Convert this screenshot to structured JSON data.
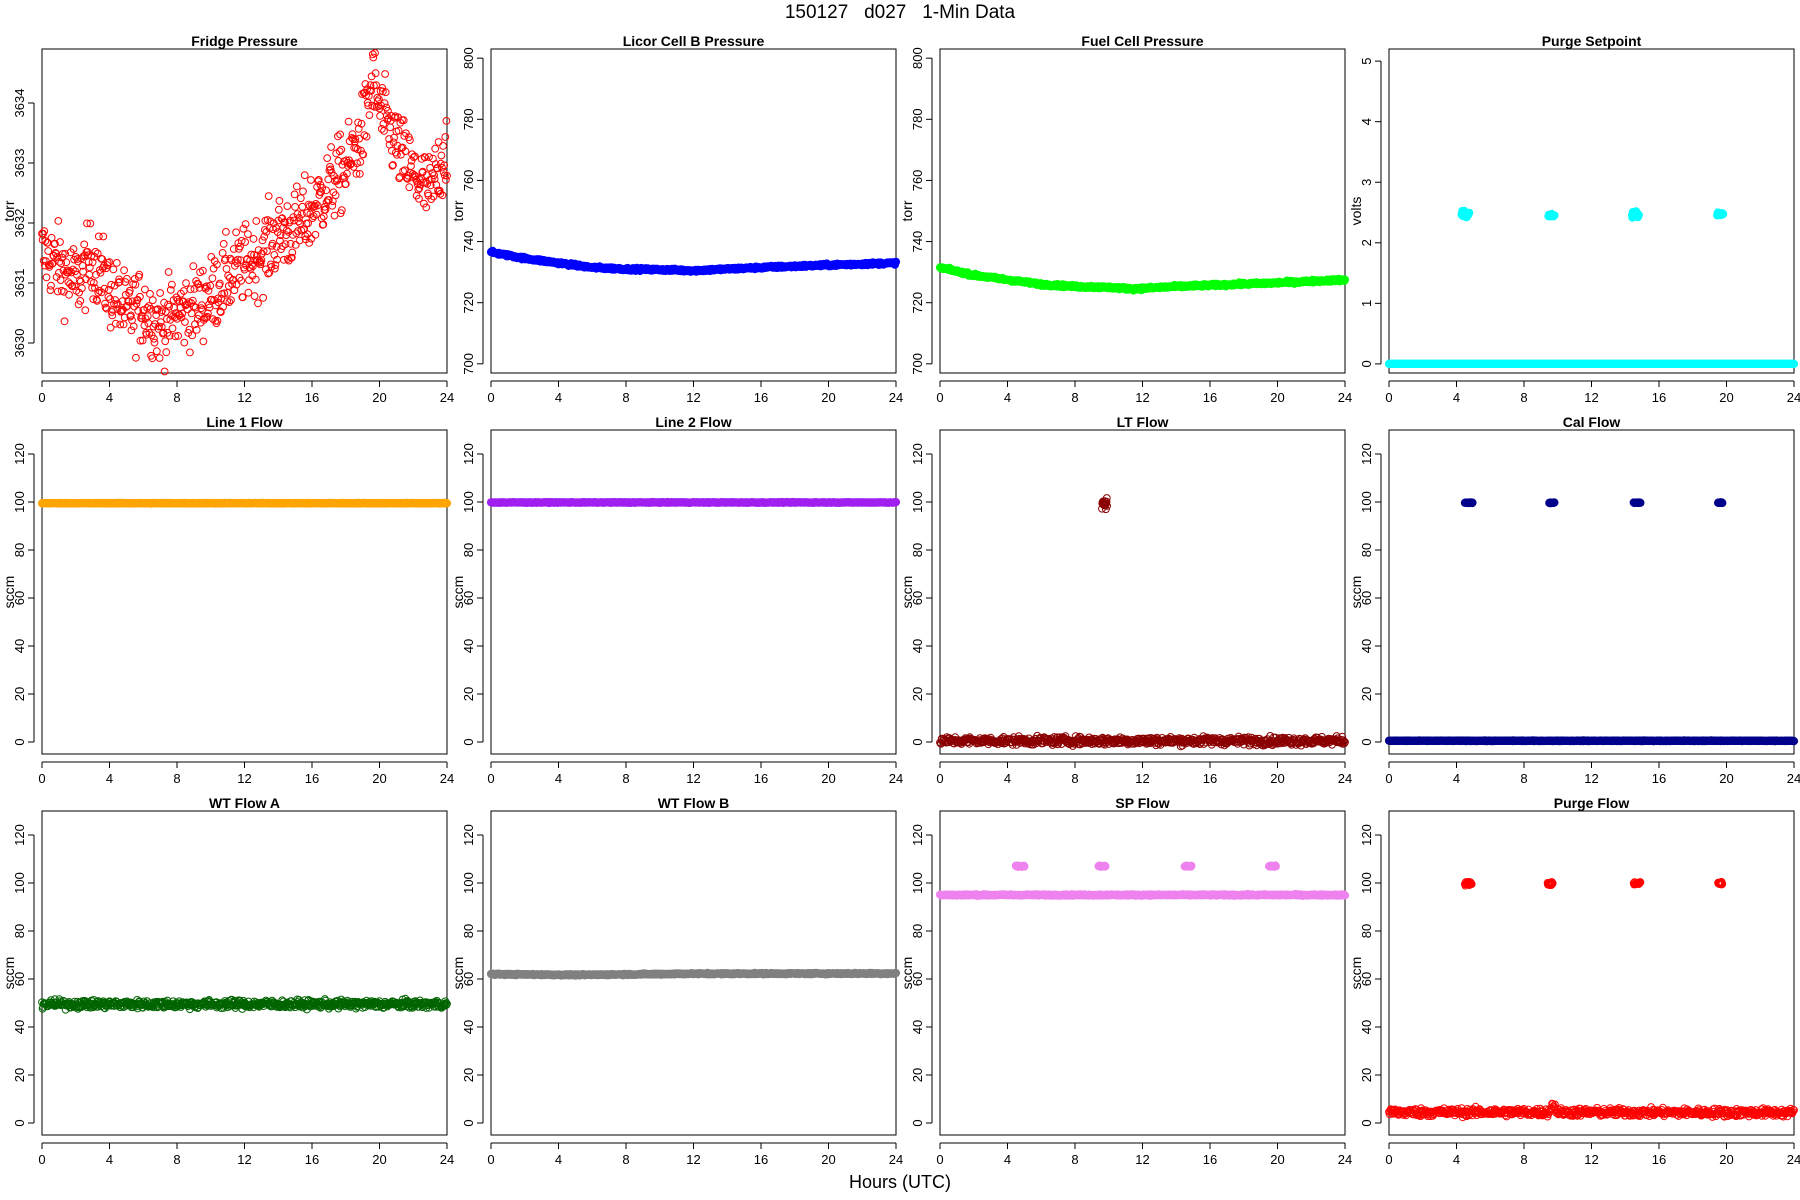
{
  "figure": {
    "title": "150127   d027   1-Min Data",
    "xlabel": "Hours (UTC)"
  },
  "chart_data": [
    {
      "type": "scatter",
      "title": "Fridge Pressure",
      "ylabel": "torr",
      "color": "#ff0000",
      "marker": "open-circle",
      "xlim": [
        0,
        24
      ],
      "ylim": [
        3629.5,
        3634.9
      ],
      "xticks": [
        0,
        4,
        8,
        12,
        16,
        20,
        24
      ],
      "yticks": [
        3630,
        3631,
        3632,
        3633,
        3634
      ],
      "trend": [
        [
          0,
          3631.5
        ],
        [
          1,
          3631.3
        ],
        [
          2,
          3631.0
        ],
        [
          3,
          3631.4
        ],
        [
          4,
          3630.9
        ],
        [
          5,
          3630.5
        ],
        [
          6,
          3630.6
        ],
        [
          7,
          3630.3
        ],
        [
          8,
          3630.5
        ],
        [
          9,
          3630.6
        ],
        [
          10,
          3630.8
        ],
        [
          11,
          3631.1
        ],
        [
          12,
          3631.3
        ],
        [
          13,
          3631.5
        ],
        [
          14,
          3631.8
        ],
        [
          15,
          3631.9
        ],
        [
          16,
          3632.2
        ],
        [
          17,
          3632.6
        ],
        [
          18,
          3632.9
        ],
        [
          19,
          3633.5
        ],
        [
          19.6,
          3634.4
        ],
        [
          20,
          3633.9
        ],
        [
          21,
          3633.3
        ],
        [
          22,
          3632.8
        ],
        [
          23,
          3632.5
        ],
        [
          24,
          3633.3
        ]
      ],
      "noise": 0.45
    },
    {
      "type": "scatter",
      "title": "Licor Cell B Pressure",
      "ylabel": "torr",
      "color": "#0000ff",
      "marker": "filled",
      "xlim": [
        0,
        24
      ],
      "ylim": [
        697,
        803
      ],
      "xticks": [
        0,
        4,
        8,
        12,
        16,
        20,
        24
      ],
      "yticks": [
        700,
        720,
        740,
        760,
        780,
        800
      ],
      "trend": [
        [
          0,
          736.5
        ],
        [
          2,
          734.5
        ],
        [
          4,
          733
        ],
        [
          6,
          731.5
        ],
        [
          8,
          731
        ],
        [
          10,
          730.8
        ],
        [
          12,
          730.5
        ],
        [
          14,
          731
        ],
        [
          16,
          731.5
        ],
        [
          20,
          732.3
        ],
        [
          24,
          733
        ]
      ],
      "noise": 0.3
    },
    {
      "type": "scatter",
      "title": "Fuel Cell Pressure",
      "ylabel": "torr",
      "color": "#00ff00",
      "marker": "filled",
      "xlim": [
        0,
        24
      ],
      "ylim": [
        697,
        803
      ],
      "xticks": [
        0,
        4,
        8,
        12,
        16,
        20,
        24
      ],
      "yticks": [
        700,
        720,
        740,
        760,
        780,
        800
      ],
      "trend": [
        [
          0,
          731.5
        ],
        [
          2,
          729
        ],
        [
          4,
          727.5
        ],
        [
          6,
          726
        ],
        [
          8,
          725.3
        ],
        [
          10,
          725
        ],
        [
          11.5,
          724.5
        ],
        [
          14,
          725.3
        ],
        [
          16,
          725.7
        ],
        [
          20,
          726.5
        ],
        [
          24,
          727.5
        ]
      ],
      "noise": 0.3
    },
    {
      "type": "scatter",
      "title": "Purge Setpoint",
      "ylabel": "volts",
      "color": "#00ffff",
      "marker": "filled",
      "xlim": [
        0,
        24
      ],
      "ylim": [
        -0.15,
        5.2
      ],
      "xticks": [
        0,
        4,
        8,
        12,
        16,
        20,
        24
      ],
      "yticks": [
        0,
        1,
        2,
        3,
        4,
        5
      ],
      "trend": [
        [
          0,
          0
        ],
        [
          24,
          0
        ]
      ],
      "noise": 0,
      "clusters": [
        {
          "x": [
            4.3,
            4.75
          ],
          "y": 2.47,
          "spread": 0.05
        },
        {
          "x": [
            9.45,
            9.8
          ],
          "y": 2.45,
          "spread": 0.02
        },
        {
          "x": [
            14.4,
            14.8
          ],
          "y": 2.47,
          "spread": 0.05
        },
        {
          "x": [
            19.45,
            19.8
          ],
          "y": 2.47,
          "spread": 0.02
        }
      ]
    },
    {
      "type": "scatter",
      "title": "Line 1 Flow",
      "ylabel": "sccm",
      "color": "#ffa500",
      "marker": "filled",
      "xlim": [
        0,
        24
      ],
      "ylim": [
        -5,
        130
      ],
      "xticks": [
        0,
        4,
        8,
        12,
        16,
        20,
        24
      ],
      "yticks": [
        0,
        20,
        40,
        60,
        80,
        100,
        120
      ],
      "trend": [
        [
          0,
          99.5
        ],
        [
          24,
          99.5
        ]
      ],
      "noise": 0.1
    },
    {
      "type": "scatter",
      "title": "Line 2 Flow",
      "ylabel": "sccm",
      "color": "#a020f0",
      "marker": "filled",
      "xlim": [
        0,
        24
      ],
      "ylim": [
        -5,
        130
      ],
      "xticks": [
        0,
        4,
        8,
        12,
        16,
        20,
        24
      ],
      "yticks": [
        0,
        20,
        40,
        60,
        80,
        100,
        120
      ],
      "trend": [
        [
          0,
          99.8
        ],
        [
          24,
          99.8
        ]
      ],
      "noise": 0.1
    },
    {
      "type": "scatter",
      "title": "LT Flow",
      "ylabel": "sccm",
      "color": "#8b0000",
      "marker": "open-circle",
      "xlim": [
        0,
        24
      ],
      "ylim": [
        -5,
        130
      ],
      "xticks": [
        0,
        4,
        8,
        12,
        16,
        20,
        24
      ],
      "yticks": [
        0,
        20,
        40,
        60,
        80,
        100,
        120
      ],
      "trend": [
        [
          0,
          0.5
        ],
        [
          24,
          0.5
        ]
      ],
      "noise": 1.2,
      "clusters": [
        {
          "x": [
            9.6,
            9.9
          ],
          "y": 99.5,
          "spread": 1.5
        }
      ]
    },
    {
      "type": "scatter",
      "title": "Cal Flow",
      "ylabel": "sccm",
      "color": "#00008b",
      "marker": "filled",
      "xlim": [
        0,
        24
      ],
      "ylim": [
        -5,
        130
      ],
      "xticks": [
        0,
        4,
        8,
        12,
        16,
        20,
        24
      ],
      "yticks": [
        0,
        20,
        40,
        60,
        80,
        100,
        120
      ],
      "trend": [
        [
          0,
          0.5
        ],
        [
          24,
          0.5
        ]
      ],
      "noise": 0.1,
      "clusters": [
        {
          "x": [
            4.5,
            4.95
          ],
          "y": 99.7,
          "spread": 0.1
        },
        {
          "x": [
            9.5,
            9.8
          ],
          "y": 99.7,
          "spread": 0.1
        },
        {
          "x": [
            14.5,
            14.9
          ],
          "y": 99.7,
          "spread": 0.1
        },
        {
          "x": [
            19.5,
            19.75
          ],
          "y": 99.7,
          "spread": 0.1
        }
      ]
    },
    {
      "type": "scatter",
      "title": "WT Flow A",
      "ylabel": "sccm",
      "color": "#006400",
      "marker": "open-circle",
      "xlim": [
        0,
        24
      ],
      "ylim": [
        -5,
        130
      ],
      "xticks": [
        0,
        4,
        8,
        12,
        16,
        20,
        24
      ],
      "yticks": [
        0,
        20,
        40,
        60,
        80,
        100,
        120
      ],
      "trend": [
        [
          0,
          49.5
        ],
        [
          24,
          49.5
        ]
      ],
      "noise": 1.2
    },
    {
      "type": "scatter",
      "title": "WT Flow B",
      "ylabel": "sccm",
      "color": "#808080",
      "marker": "filled",
      "xlim": [
        0,
        24
      ],
      "ylim": [
        -5,
        130
      ],
      "xticks": [
        0,
        4,
        8,
        12,
        16,
        20,
        24
      ],
      "yticks": [
        0,
        20,
        40,
        60,
        80,
        100,
        120
      ],
      "trend": [
        [
          0,
          62
        ],
        [
          5,
          61.7
        ],
        [
          12,
          62.2
        ],
        [
          24,
          62.3
        ]
      ],
      "noise": 0.2
    },
    {
      "type": "scatter",
      "title": "SP Flow",
      "ylabel": "sccm",
      "color": "#ee82ee",
      "marker": "filled",
      "xlim": [
        0,
        24
      ],
      "ylim": [
        -5,
        130
      ],
      "xticks": [
        0,
        4,
        8,
        12,
        16,
        20,
        24
      ],
      "yticks": [
        0,
        20,
        40,
        60,
        80,
        100,
        120
      ],
      "trend": [
        [
          0,
          95
        ],
        [
          24,
          95
        ]
      ],
      "noise": 0.2,
      "clusters": [
        {
          "x": [
            4.5,
            5.0
          ],
          "y": 107,
          "spread": 0.2
        },
        {
          "x": [
            9.4,
            9.8
          ],
          "y": 107,
          "spread": 0.2
        },
        {
          "x": [
            14.5,
            14.9
          ],
          "y": 107,
          "spread": 0.2
        },
        {
          "x": [
            19.5,
            19.9
          ],
          "y": 107,
          "spread": 0.2
        }
      ]
    },
    {
      "type": "scatter",
      "title": "Purge Flow",
      "ylabel": "sccm",
      "color": "#ff0000",
      "marker": "open-circle",
      "xlim": [
        0,
        24
      ],
      "ylim": [
        -5,
        130
      ],
      "xticks": [
        0,
        4,
        8,
        12,
        16,
        20,
        24
      ],
      "yticks": [
        0,
        20,
        40,
        60,
        80,
        100,
        120
      ],
      "trend": [
        [
          0,
          4.5
        ],
        [
          9.5,
          4.5
        ],
        [
          9.7,
          8
        ],
        [
          10,
          4.5
        ],
        [
          24,
          4.3
        ]
      ],
      "noise": 1.2,
      "clusters": [
        {
          "x": [
            4.5,
            4.9
          ],
          "y": 99.8,
          "spread": 0.6
        },
        {
          "x": [
            9.4,
            9.7
          ],
          "y": 99.8,
          "spread": 0.6
        },
        {
          "x": [
            14.5,
            14.9
          ],
          "y": 99.8,
          "spread": 0.6
        },
        {
          "x": [
            19.5,
            19.75
          ],
          "y": 99.8,
          "spread": 0.6
        }
      ]
    }
  ]
}
